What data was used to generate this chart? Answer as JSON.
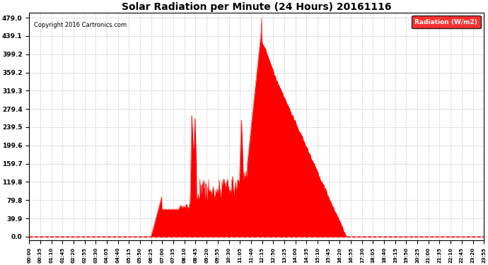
{
  "title": "Solar Radiation per Minute (24 Hours) 20161116",
  "copyright": "Copyright 2016 Cartronics.com",
  "legend_label": "Radiation (W/m2)",
  "yticks": [
    0.0,
    39.9,
    79.8,
    119.8,
    159.7,
    199.6,
    239.5,
    279.4,
    319.3,
    359.2,
    399.2,
    439.1,
    479.0
  ],
  "ymax": 490,
  "bg_color": "#ffffff",
  "plot_bg_color": "#ffffff",
  "fill_color": "#ff0000",
  "line_color": "#ff0000",
  "grid_color": "#c0c0c0",
  "title_color": "#000000",
  "copyright_color": "#000000",
  "legend_bg": "#ff0000",
  "legend_text_color": "#ffffff",
  "xtick_labels": [
    "00:00",
    "00:35",
    "01:10",
    "01:45",
    "02:20",
    "02:55",
    "03:30",
    "04:05",
    "04:40",
    "05:15",
    "05:50",
    "06:25",
    "07:00",
    "07:35",
    "08:10",
    "08:45",
    "09:20",
    "09:55",
    "10:30",
    "11:05",
    "11:40",
    "12:15",
    "12:50",
    "13:25",
    "14:00",
    "14:35",
    "15:10",
    "15:45",
    "16:20",
    "16:55",
    "17:30",
    "18:05",
    "18:40",
    "19:15",
    "19:50",
    "20:25",
    "21:00",
    "21:35",
    "22:10",
    "22:45",
    "23:20",
    "23:55"
  ]
}
